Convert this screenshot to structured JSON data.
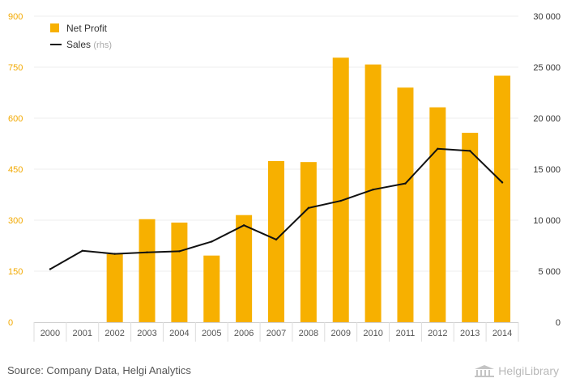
{
  "chart_data": {
    "type": "bar",
    "categories": [
      "2000",
      "2001",
      "2002",
      "2003",
      "2004",
      "2005",
      "2006",
      "2007",
      "2008",
      "2009",
      "2010",
      "2011",
      "2012",
      "2013",
      "2014"
    ],
    "series": [
      {
        "name": "Net Profit",
        "kind": "bar",
        "axis": "left",
        "color": "#f7b000",
        "values": [
          0,
          0,
          200,
          303,
          293,
          196,
          315,
          474,
          471,
          778,
          758,
          690,
          632,
          557,
          725
        ]
      },
      {
        "name": "Sales",
        "kind": "line",
        "axis": "right",
        "color": "#111111",
        "values": [
          5200,
          7000,
          6700,
          6850,
          6950,
          7900,
          9500,
          8100,
          11200,
          11900,
          13000,
          13600,
          17000,
          16800,
          13700
        ]
      }
    ],
    "y_left": {
      "min": 0,
      "max": 900,
      "ticks": [
        "0",
        "150",
        "300",
        "450",
        "600",
        "750",
        "900"
      ],
      "tick_values": [
        0,
        150,
        300,
        450,
        600,
        750,
        900
      ]
    },
    "y_right": {
      "min": 0,
      "max": 30000,
      "ticks": [
        "0",
        "5 000",
        "10 000",
        "15 000",
        "20 000",
        "25 000",
        "30 000"
      ],
      "tick_values": [
        0,
        5000,
        10000,
        15000,
        20000,
        25000,
        30000
      ]
    },
    "legend": {
      "position": "top-left",
      "items": [
        {
          "label": "Net Profit"
        },
        {
          "label": "Sales",
          "suffix": "(rhs)"
        }
      ]
    },
    "grid": true
  },
  "footer": {
    "source": "Source: Company Data, Helgi Analytics",
    "brand": "HelgiLibrary"
  },
  "icons": {
    "brand": "library-building-icon"
  }
}
